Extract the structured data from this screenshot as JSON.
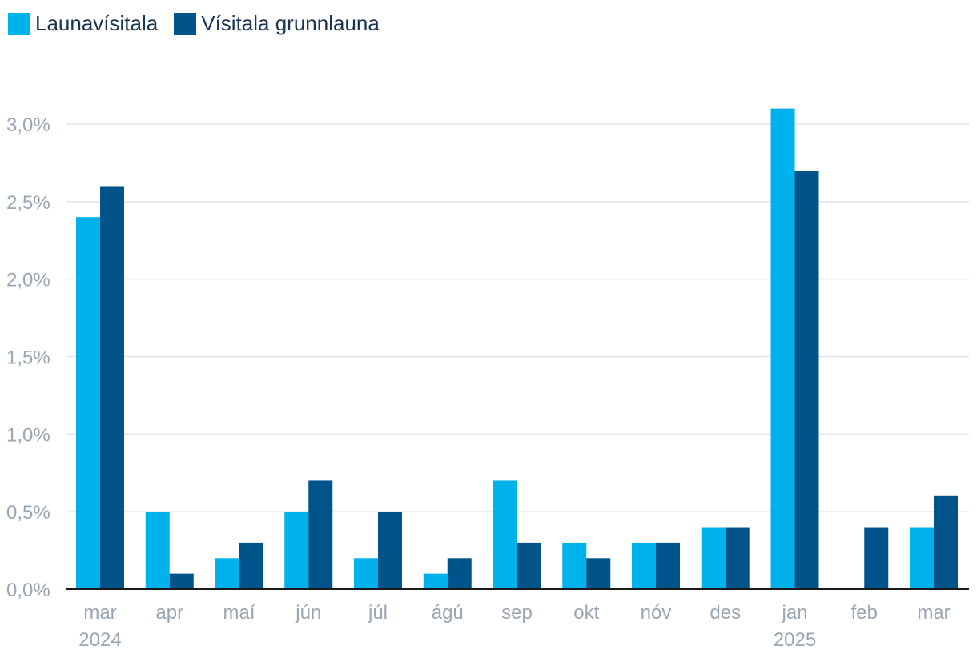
{
  "chart_data": {
    "type": "bar",
    "categories": [
      "mar",
      "apr",
      "maí",
      "jún",
      "júl",
      "ágú",
      "sep",
      "okt",
      "nóv",
      "des",
      "jan",
      "feb",
      "mar"
    ],
    "year_labels": [
      {
        "index": 0,
        "label": "2024"
      },
      {
        "index": 10,
        "label": "2025"
      }
    ],
    "series": [
      {
        "name": "Launavísitala",
        "color": "#00b2ec",
        "values": [
          2.4,
          0.5,
          0.2,
          0.5,
          0.2,
          0.1,
          0.7,
          0.3,
          0.3,
          0.4,
          3.1,
          null,
          0.4
        ]
      },
      {
        "name": "Vísitala grunnlauna",
        "color": "#00548a",
        "values": [
          2.6,
          0.1,
          0.3,
          0.7,
          0.5,
          0.2,
          0.3,
          0.2,
          0.3,
          0.4,
          2.7,
          0.4,
          0.6
        ]
      }
    ],
    "yticks": [
      {
        "value": 0.0,
        "label": "0,0%"
      },
      {
        "value": 0.5,
        "label": "0,5%"
      },
      {
        "value": 1.0,
        "label": "1,0%"
      },
      {
        "value": 1.5,
        "label": "1,5%"
      },
      {
        "value": 2.0,
        "label": "2,0%"
      },
      {
        "value": 2.5,
        "label": "2,5%"
      },
      {
        "value": 3.0,
        "label": "3,0%"
      }
    ],
    "ylim": [
      0,
      3.0
    ],
    "grid": true,
    "legend_position": "top-left"
  }
}
